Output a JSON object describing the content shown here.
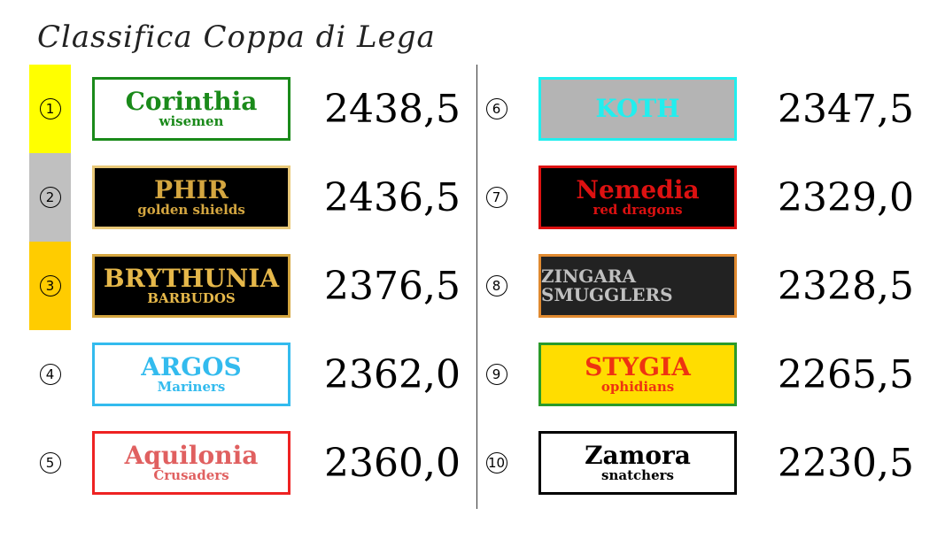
{
  "title": "Classifica Coppa di Lega",
  "colors": {
    "rank1": "#ffff00",
    "rank2": "#c0c0c0",
    "rank3": "#ffcc00"
  },
  "teams": [
    {
      "rank": "1",
      "name": "Corinthia",
      "sub": "wisemen",
      "score": "2438,5",
      "border": "#1a8a1a",
      "bg": "#ffffff",
      "fg": "#1a8a1a",
      "rank_bg": "#ffff00"
    },
    {
      "rank": "2",
      "name": "PHIR",
      "sub": "golden shields",
      "score": "2436,5",
      "border": "#e8c878",
      "bg": "#000000",
      "fg": "#d4a640",
      "rank_bg": "#c0c0c0"
    },
    {
      "rank": "3",
      "name": "BRYTHUNIA",
      "sub": "BARBUDOS",
      "score": "2376,5",
      "border": "#d4a640",
      "bg": "#000000",
      "fg": "#e6b84a",
      "rank_bg": "#ffcc00"
    },
    {
      "rank": "4",
      "name": "ARGOS",
      "sub": "Mariners",
      "score": "2362,0",
      "border": "#33bbee",
      "bg": "#ffffff",
      "fg": "#33bbee",
      "rank_bg": ""
    },
    {
      "rank": "5",
      "name": "Aquilonia",
      "sub": "Crusaders",
      "score": "2360,0",
      "border": "#ee2222",
      "bg": "#ffffff",
      "fg": "#e06060",
      "rank_bg": ""
    },
    {
      "rank": "6",
      "name": "KOTH",
      "sub": "",
      "score": "2347,5",
      "border": "#22eeee",
      "bg": "#b4b4b4",
      "fg": "#22eeee",
      "rank_bg": ""
    },
    {
      "rank": "7",
      "name": "Nemedia",
      "sub": "red dragons",
      "score": "2329,0",
      "border": "#dd1111",
      "bg": "#000000",
      "fg": "#dd1111",
      "rank_bg": ""
    },
    {
      "rank": "8",
      "name": "ZINGARA SMUGGLERS",
      "sub": "",
      "score": "2328,5",
      "border": "#e08a30",
      "bg": "#222222",
      "fg": "#c0c0c0",
      "rank_bg": ""
    },
    {
      "rank": "9",
      "name": "STYGIA",
      "sub": "ophidians",
      "score": "2265,5",
      "border": "#2a9a2a",
      "bg": "#ffdd00",
      "fg": "#ee3311",
      "rank_bg": ""
    },
    {
      "rank": "10",
      "name": "Zamora",
      "sub": "snatchers",
      "score": "2230,5",
      "border": "#000000",
      "bg": "#ffffff",
      "fg": "#000000",
      "rank_bg": ""
    }
  ]
}
